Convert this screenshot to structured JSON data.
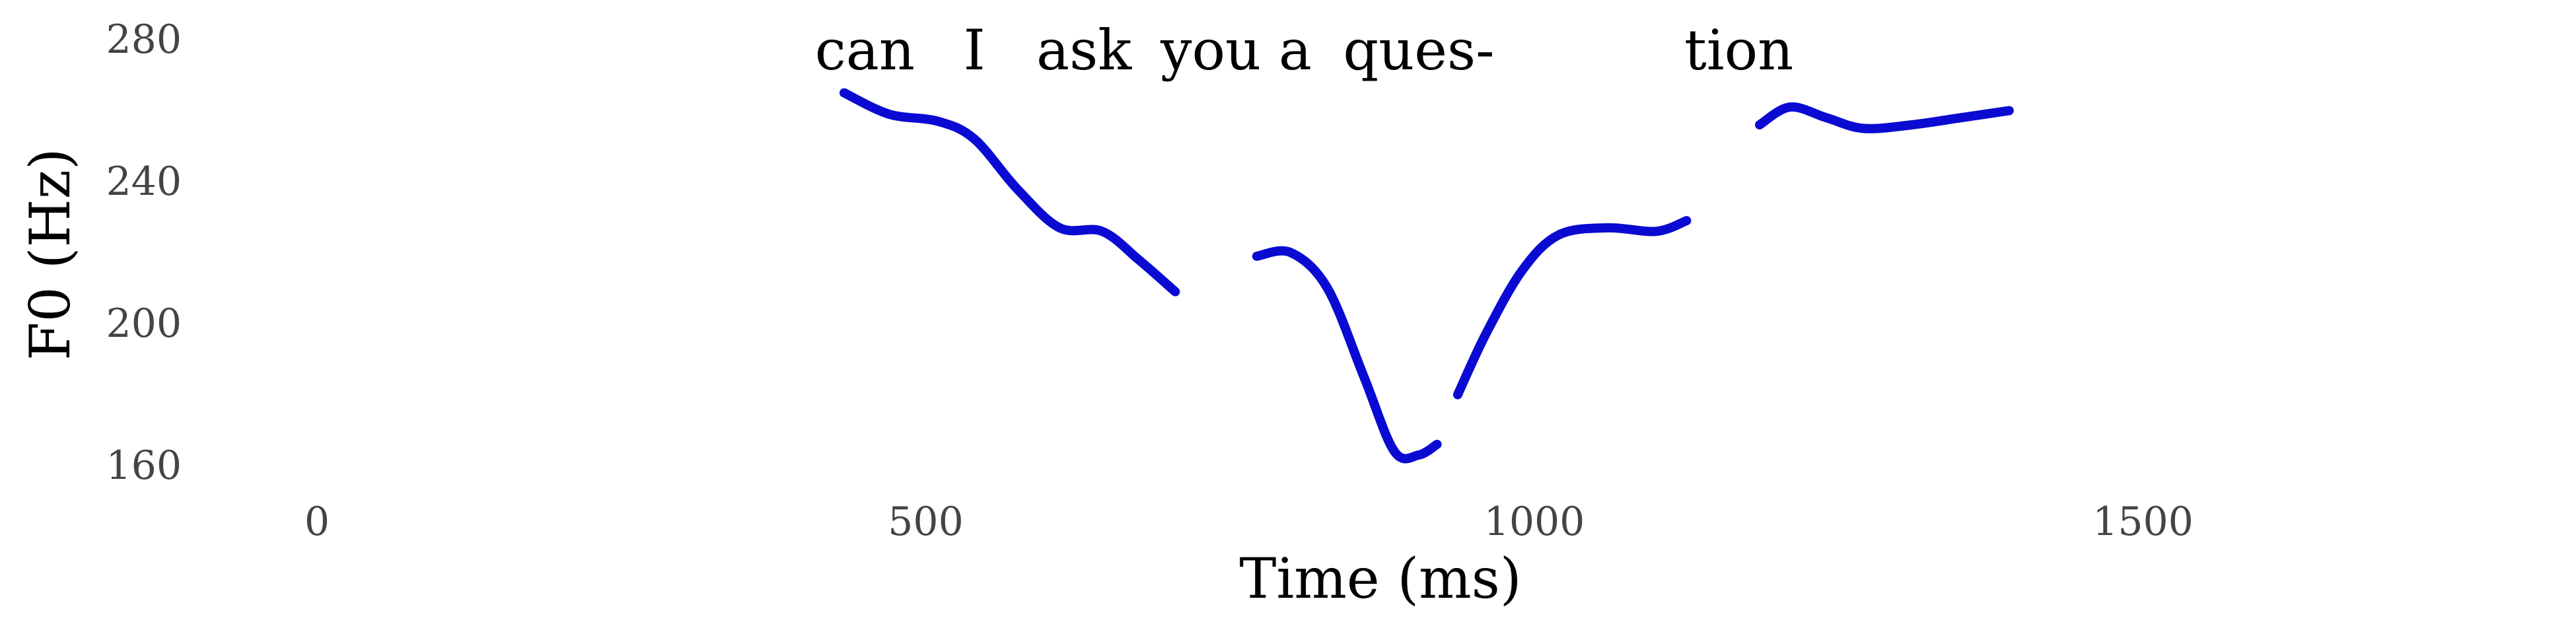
{
  "chart_data": {
    "type": "line",
    "xlabel": "Time (ms)",
    "ylabel": "F0 (Hz)",
    "xlim": [
      -60,
      1880
    ],
    "ylim": [
      150,
      285
    ],
    "xticks": [
      0,
      500,
      1000,
      1500
    ],
    "yticks": [
      160,
      200,
      240,
      280
    ],
    "grid": false,
    "line_color": "#0a0ad2",
    "words": [
      {
        "text": "can",
        "x": 450
      },
      {
        "text": "I",
        "x": 540
      },
      {
        "text": "ask",
        "x": 630
      },
      {
        "text": "you a",
        "x": 755
      },
      {
        "text": "ques-",
        "x": 905
      },
      {
        "text": "tion",
        "x": 1168
      }
    ],
    "segments": [
      {
        "points": [
          [
            433,
            265
          ],
          [
            470,
            259
          ],
          [
            510,
            257
          ],
          [
            540,
            252
          ],
          [
            575,
            238
          ],
          [
            610,
            227
          ],
          [
            645,
            226
          ],
          [
            675,
            218
          ],
          [
            705,
            209
          ]
        ]
      },
      {
        "points": [
          [
            772,
            219
          ],
          [
            800,
            220
          ],
          [
            830,
            210
          ],
          [
            860,
            185
          ],
          [
            885,
            164
          ],
          [
            905,
            163
          ],
          [
            920,
            166
          ]
        ]
      },
      {
        "points": [
          [
            937,
            180
          ],
          [
            960,
            197
          ],
          [
            990,
            215
          ],
          [
            1020,
            225
          ],
          [
            1060,
            227
          ],
          [
            1100,
            226
          ],
          [
            1125,
            229
          ]
        ]
      },
      {
        "points": [
          [
            1185,
            256
          ],
          [
            1210,
            261
          ],
          [
            1240,
            258
          ],
          [
            1270,
            255
          ],
          [
            1310,
            256
          ],
          [
            1350,
            258
          ],
          [
            1390,
            260
          ]
        ]
      }
    ]
  }
}
